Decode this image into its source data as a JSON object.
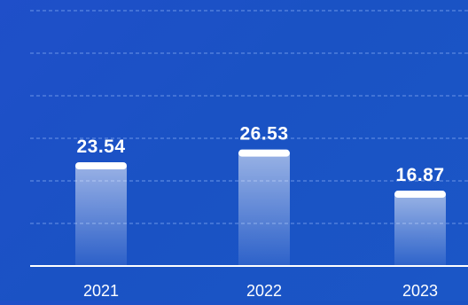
{
  "colors": {
    "background_start": "#1f4fc9",
    "background_end": "#1b56c6",
    "bar_top": "#ffffff",
    "text": "#ffffff",
    "axis": "#ffffff",
    "grid": "#7fa6f0"
  },
  "chart_data": {
    "type": "bar",
    "categories": [
      "2021",
      "2022",
      "2023"
    ],
    "values": [
      23.54,
      26.53,
      16.87
    ],
    "data_labels": [
      "23.54",
      "26.53",
      "16.87"
    ],
    "title": "",
    "xlabel": "",
    "ylabel": "",
    "ylim": [
      0,
      60
    ],
    "grid": true,
    "grid_style": "dashed",
    "legend": "none"
  }
}
